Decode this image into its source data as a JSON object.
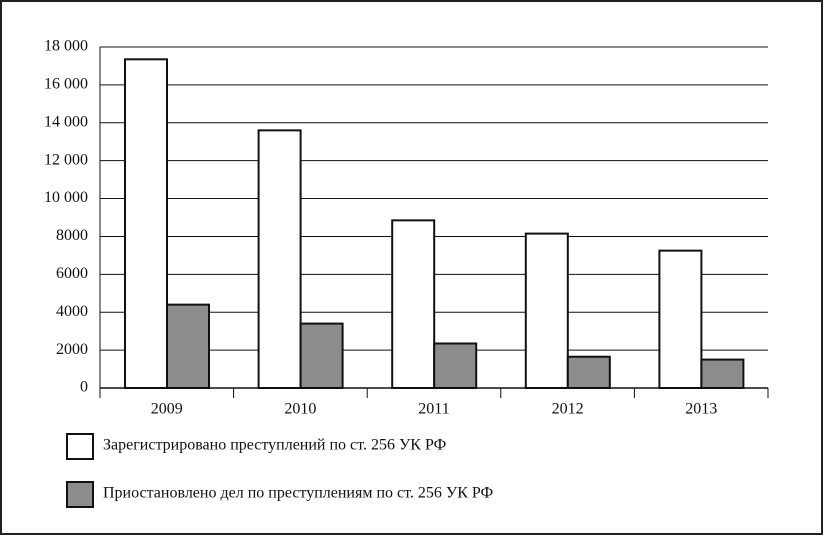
{
  "chart_data": {
    "type": "bar",
    "categories": [
      "2009",
      "2010",
      "2011",
      "2012",
      "2013"
    ],
    "series": [
      {
        "name": "Зарегистрировано преступлений по ст. 256 УК РФ",
        "color": "#ffffff",
        "values": [
          17350,
          13600,
          8850,
          8150,
          7250
        ]
      },
      {
        "name": "Приостановлено дел по преступлениям по ст. 256 УК РФ",
        "color": "#8c8c8c",
        "values": [
          4400,
          3400,
          2350,
          1650,
          1500
        ]
      }
    ],
    "ylim": [
      0,
      18000
    ],
    "yticks": [
      0,
      2000,
      4000,
      6000,
      8000,
      {
        "value": 10000,
        "label": "10 000"
      },
      {
        "value": 12000,
        "label": "12 000"
      },
      {
        "value": 14000,
        "label": "14 000"
      },
      {
        "value": 16000,
        "label": "16 000"
      },
      {
        "value": 18000,
        "label": "18 000"
      }
    ],
    "grid": true
  }
}
